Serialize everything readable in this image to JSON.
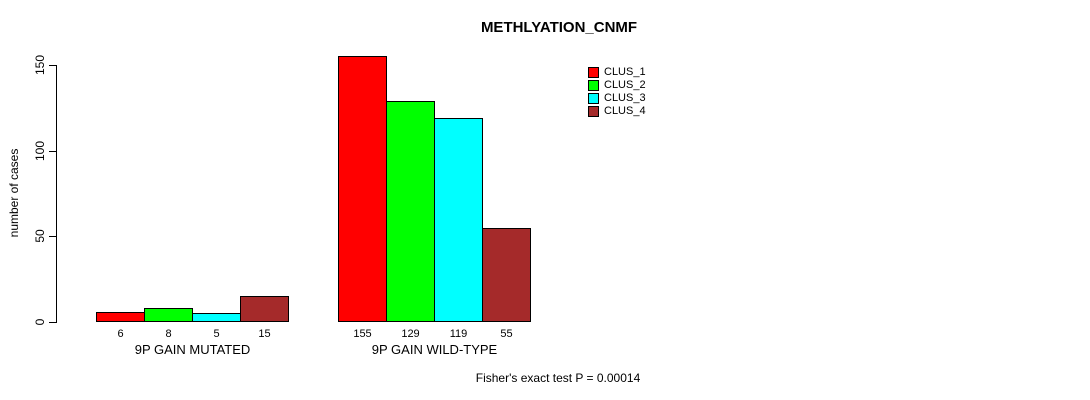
{
  "title": "METHLYATION_CNMF",
  "footer": {
    "note": "Fisher's exact test P = 0.00014"
  },
  "chart_data": {
    "type": "bar",
    "title": "METHLYATION_CNMF",
    "xlabel": "",
    "ylabel": "number of cases",
    "ylim": [
      0,
      150
    ],
    "yticks": [
      0,
      50,
      100,
      150
    ],
    "grid": false,
    "legend_position": "top-right",
    "categories": [
      "9P GAIN MUTATED",
      "9P GAIN WILD-TYPE"
    ],
    "series": [
      {
        "name": "CLUS_1",
        "color": "#FF0000",
        "values": [
          6,
          155
        ]
      },
      {
        "name": "CLUS_2",
        "color": "#00FF00",
        "values": [
          8,
          129
        ]
      },
      {
        "name": "CLUS_3",
        "color": "#00FFFF",
        "values": [
          5,
          119
        ]
      },
      {
        "name": "CLUS_4",
        "color": "#A52A2A",
        "values": [
          15,
          55
        ]
      }
    ],
    "bar_value_labels": true,
    "annotation": "Fisher's exact test P = 0.00014"
  }
}
